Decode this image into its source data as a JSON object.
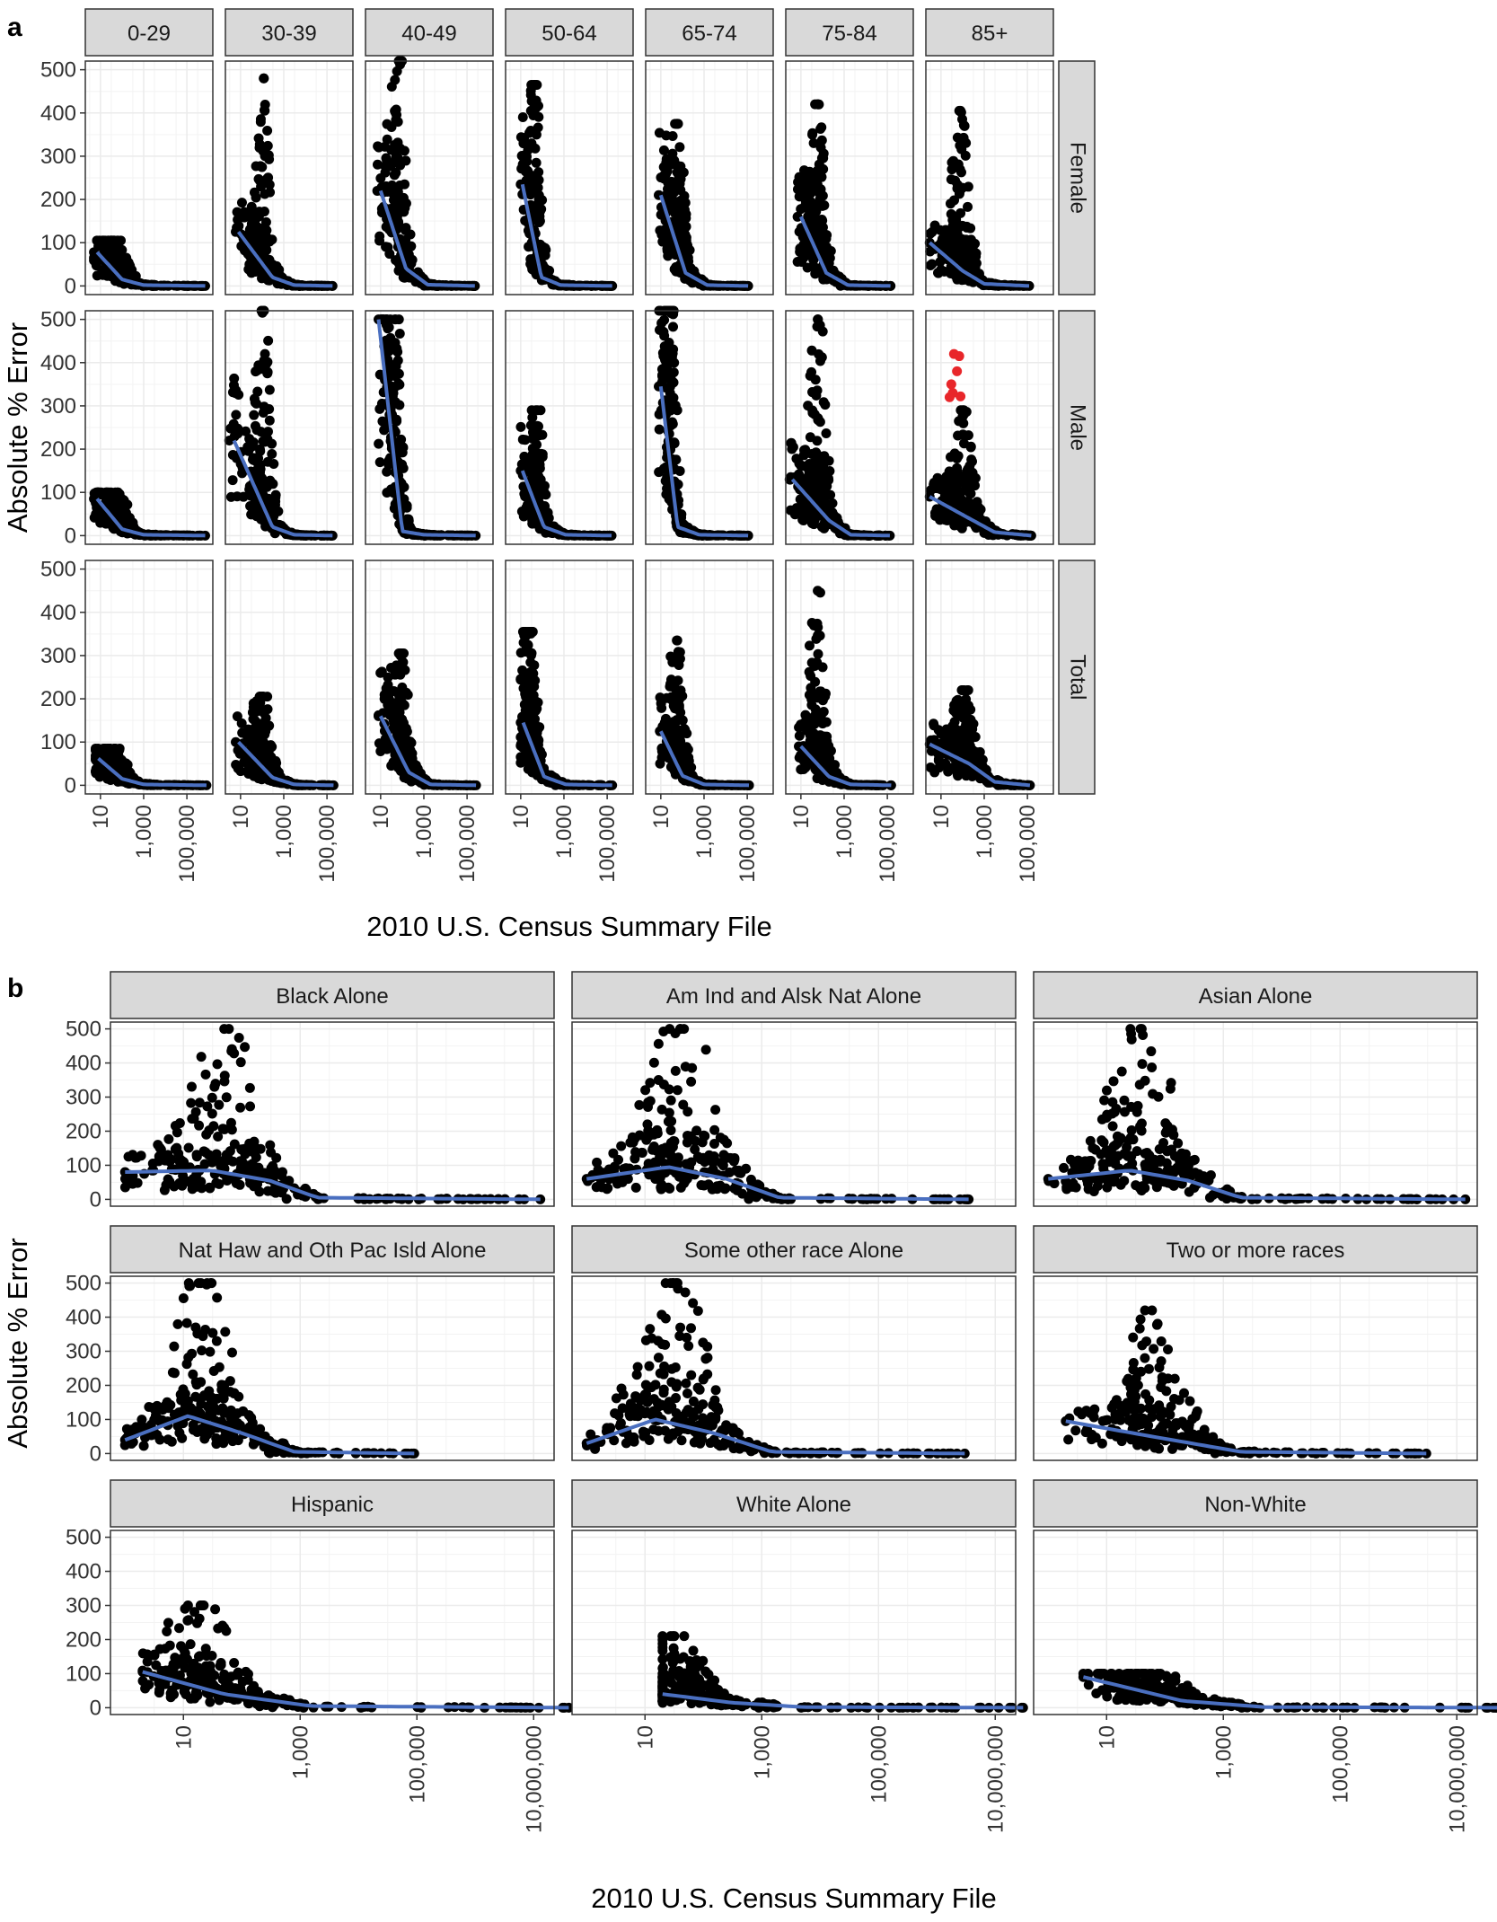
{
  "figure": {
    "panel_a_letter": "a",
    "panel_b_letter": "b"
  },
  "colors": {
    "point": "#000000",
    "highlight_point": "#e8262a",
    "smooth_line": "#4a6fc0",
    "strip_fill": "#d9d9d9",
    "grid": "#ebebeb",
    "panel_border": "#333333"
  },
  "chart_data": [
    {
      "id": "a",
      "type": "scatter",
      "title": "",
      "xlabel": "2010 U.S. Census Summary File",
      "ylabel": "Absolute % Error",
      "x_scale": "log10",
      "x_tick_values": [
        10,
        1000,
        100000
      ],
      "x_tick_labels": [
        "10",
        "1,000",
        "100,000"
      ],
      "ylim": [
        0,
        500
      ],
      "y_tick_values": [
        0,
        100,
        200,
        300,
        400,
        500
      ],
      "y_tick_labels": [
        "0",
        "100",
        "200",
        "300",
        "400",
        "500"
      ],
      "grid": true,
      "legend": "none",
      "columns": [
        "0-29",
        "30-39",
        "40-49",
        "50-64",
        "65-74",
        "75-84",
        "85+"
      ],
      "rows": [
        "Female",
        "Male",
        "Total"
      ],
      "panels": [
        {
          "column": "0-29",
          "row": "Female",
          "x_range": [
            5,
            700000
          ],
          "peak_x": 60,
          "peak_y": 105,
          "spread": 1.0,
          "smooth": [
            [
              7,
              78
            ],
            [
              100,
              15
            ],
            [
              1000,
              2
            ],
            [
              700000,
              0
            ]
          ]
        },
        {
          "column": "30-39",
          "row": "Female",
          "x_range": [
            6,
            180000
          ],
          "peak_x": 120,
          "peak_y": 480,
          "spread": 0.6,
          "smooth": [
            [
              8,
              125
            ],
            [
              300,
              20
            ],
            [
              3000,
              2
            ],
            [
              180000,
              0
            ]
          ]
        },
        {
          "column": "40-49",
          "row": "Female",
          "x_range": [
            7,
            230000
          ],
          "peak_x": 70,
          "peak_y": 520,
          "spread": 0.6,
          "smooth": [
            [
              10,
              220
            ],
            [
              150,
              40
            ],
            [
              1500,
              3
            ],
            [
              230000,
              0
            ]
          ]
        },
        {
          "column": "50-64",
          "row": "Female",
          "x_range": [
            10,
            170000
          ],
          "peak_x": 45,
          "peak_y": 465,
          "spread": 0.5,
          "smooth": [
            [
              12,
              235
            ],
            [
              90,
              20
            ],
            [
              700,
              2
            ],
            [
              170000,
              0
            ]
          ]
        },
        {
          "column": "65-74",
          "row": "Female",
          "x_range": [
            8,
            110000
          ],
          "peak_x": 60,
          "peak_y": 375,
          "spread": 0.6,
          "smooth": [
            [
              10,
              210
            ],
            [
              140,
              30
            ],
            [
              1400,
              2
            ],
            [
              110000,
              0
            ]
          ]
        },
        {
          "column": "75-84",
          "row": "Female",
          "x_range": [
            7,
            140000
          ],
          "peak_x": 60,
          "peak_y": 420,
          "spread": 0.6,
          "smooth": [
            [
              10,
              160
            ],
            [
              150,
              30
            ],
            [
              1500,
              2
            ],
            [
              140000,
              0
            ]
          ]
        },
        {
          "column": "85+",
          "row": "Female",
          "x_range": [
            3,
            120000
          ],
          "peak_x": 80,
          "peak_y": 405,
          "spread": 0.8,
          "smooth": [
            [
              3,
              100
            ],
            [
              100,
              35
            ],
            [
              1000,
              5
            ],
            [
              120000,
              0
            ]
          ]
        },
        {
          "column": "0-29",
          "row": "Male",
          "x_range": [
            5,
            700000
          ],
          "peak_x": 60,
          "peak_y": 100,
          "spread": 1.0,
          "smooth": [
            [
              7,
              85
            ],
            [
              100,
              15
            ],
            [
              1000,
              2
            ],
            [
              700000,
              0
            ]
          ]
        },
        {
          "column": "30-39",
          "row": "Male",
          "x_range": [
            3,
            180000
          ],
          "peak_x": 120,
          "peak_y": 520,
          "spread": 0.6,
          "smooth": [
            [
              5,
              220
            ],
            [
              300,
              20
            ],
            [
              3000,
              2
            ],
            [
              180000,
              0
            ]
          ]
        },
        {
          "column": "40-49",
          "row": "Male",
          "x_range": [
            8,
            250000
          ],
          "peak_x": 50,
          "peak_y": 500,
          "spread": 0.5,
          "smooth": [
            [
              8,
              500
            ],
            [
              100,
              10
            ],
            [
              1000,
              2
            ],
            [
              250000,
              0
            ]
          ]
        },
        {
          "column": "50-64",
          "row": "Male",
          "x_range": [
            10,
            160000
          ],
          "peak_x": 60,
          "peak_y": 290,
          "spread": 0.5,
          "smooth": [
            [
              12,
              150
            ],
            [
              120,
              20
            ],
            [
              1200,
              2
            ],
            [
              160000,
              0
            ]
          ]
        },
        {
          "column": "65-74",
          "row": "Male",
          "x_range": [
            8,
            110000
          ],
          "peak_x": 30,
          "peak_y": 520,
          "spread": 0.5,
          "smooth": [
            [
              10,
              345
            ],
            [
              60,
              20
            ],
            [
              600,
              2
            ],
            [
              110000,
              0
            ]
          ]
        },
        {
          "column": "75-84",
          "row": "Male",
          "x_range": [
            3,
            130000
          ],
          "peak_x": 60,
          "peak_y": 500,
          "spread": 0.7,
          "smooth": [
            [
              4,
              130
            ],
            [
              200,
              35
            ],
            [
              2000,
              2
            ],
            [
              130000,
              0
            ]
          ]
        },
        {
          "column": "85+",
          "row": "Male",
          "x_range": [
            3,
            150000
          ],
          "peak_x": 100,
          "peak_y": 290,
          "spread": 0.9,
          "smooth": [
            [
              3,
              90
            ],
            [
              200,
              40
            ],
            [
              3000,
              8
            ],
            [
              150000,
              0
            ]
          ],
          "highlight_points": [
            [
              25,
              320
            ],
            [
              30,
              350
            ],
            [
              40,
              420
            ],
            [
              55,
              380
            ],
            [
              70,
              415
            ],
            [
              80,
              322
            ],
            [
              35,
              330
            ]
          ]
        },
        {
          "column": "0-29",
          "row": "Total",
          "x_range": [
            6,
            800000
          ],
          "peak_x": 50,
          "peak_y": 85,
          "spread": 1.0,
          "smooth": [
            [
              8,
              62
            ],
            [
              100,
              15
            ],
            [
              1000,
              2
            ],
            [
              800000,
              0
            ]
          ]
        },
        {
          "column": "30-39",
          "row": "Total",
          "x_range": [
            6,
            200000
          ],
          "peak_x": 100,
          "peak_y": 205,
          "spread": 0.8,
          "smooth": [
            [
              8,
              100
            ],
            [
              300,
              18
            ],
            [
              3000,
              2
            ],
            [
              200000,
              0
            ]
          ]
        },
        {
          "column": "40-49",
          "row": "Total",
          "x_range": [
            8,
            260000
          ],
          "peak_x": 80,
          "peak_y": 305,
          "spread": 0.7,
          "smooth": [
            [
              10,
              160
            ],
            [
              200,
              30
            ],
            [
              2000,
              2
            ],
            [
              260000,
              0
            ]
          ]
        },
        {
          "column": "50-64",
          "row": "Total",
          "x_range": [
            10,
            170000
          ],
          "peak_x": 25,
          "peak_y": 355,
          "spread": 0.5,
          "smooth": [
            [
              13,
              145
            ],
            [
              120,
              20
            ],
            [
              1200,
              2
            ],
            [
              170000,
              0
            ]
          ]
        },
        {
          "column": "65-74",
          "row": "Total",
          "x_range": [
            9,
            120000
          ],
          "peak_x": 55,
          "peak_y": 335,
          "spread": 0.6,
          "smooth": [
            [
              10,
              125
            ],
            [
              100,
              22
            ],
            [
              1000,
              2
            ],
            [
              120000,
              0
            ]
          ]
        },
        {
          "column": "75-84",
          "row": "Total",
          "x_range": [
            8,
            150000
          ],
          "peak_x": 60,
          "peak_y": 450,
          "spread": 0.7,
          "smooth": [
            [
              10,
              90
            ],
            [
              200,
              20
            ],
            [
              2000,
              2
            ],
            [
              150000,
              0
            ]
          ]
        },
        {
          "column": "85+",
          "row": "Total",
          "x_range": [
            3,
            130000
          ],
          "peak_x": 120,
          "peak_y": 220,
          "spread": 0.9,
          "smooth": [
            [
              3,
              95
            ],
            [
              200,
              50
            ],
            [
              3000,
              8
            ],
            [
              130000,
              0
            ]
          ]
        }
      ]
    },
    {
      "id": "b",
      "type": "scatter",
      "title": "",
      "xlabel": "2010 U.S. Census Summary File",
      "ylabel": "Absolute % Error",
      "x_scale": "log10",
      "x_tick_values": [
        10,
        1000,
        100000,
        10000000
      ],
      "x_tick_labels": [
        "10",
        "1,000",
        "100,000",
        "10,000,000"
      ],
      "ylim": [
        0,
        500
      ],
      "y_tick_values": [
        0,
        100,
        200,
        300,
        400,
        500
      ],
      "y_tick_labels": [
        "0",
        "100",
        "200",
        "300",
        "400",
        "500"
      ],
      "grid": true,
      "legend": "none",
      "layout": [
        3,
        3
      ],
      "panels": [
        {
          "label": "Black Alone",
          "x_range": [
            1,
            13000000
          ],
          "peak_x": 50,
          "peak_y": 500,
          "spread": 1.1,
          "smooth": [
            [
              1,
              80
            ],
            [
              30,
              85
            ],
            [
              300,
              55
            ],
            [
              2000,
              5
            ],
            [
              13000000,
              0
            ]
          ]
        },
        {
          "label": "Am Ind and Alsk Nat Alone",
          "x_range": [
            1,
            3500000
          ],
          "peak_x": 40,
          "peak_y": 500,
          "spread": 1.1,
          "smooth": [
            [
              1,
              60
            ],
            [
              25,
              95
            ],
            [
              250,
              60
            ],
            [
              2000,
              5
            ],
            [
              3500000,
              0
            ]
          ]
        },
        {
          "label": "Asian Alone",
          "x_range": [
            1,
            14000000
          ],
          "peak_x": 40,
          "peak_y": 500,
          "spread": 1.1,
          "smooth": [
            [
              1,
              60
            ],
            [
              25,
              85
            ],
            [
              250,
              55
            ],
            [
              2000,
              5
            ],
            [
              14000000,
              0
            ]
          ]
        },
        {
          "label": "Nat Haw and Oth Pac Isld Alone",
          "x_range": [
            1,
            90000
          ],
          "peak_x": 20,
          "peak_y": 500,
          "spread": 1.0,
          "smooth": [
            [
              1,
              40
            ],
            [
              12,
              110
            ],
            [
              100,
              60
            ],
            [
              800,
              5
            ],
            [
              90000,
              0
            ]
          ]
        },
        {
          "label": "Some other race Alone",
          "x_range": [
            1,
            3000000
          ],
          "peak_x": 30,
          "peak_y": 500,
          "spread": 1.1,
          "smooth": [
            [
              1,
              30
            ],
            [
              15,
              100
            ],
            [
              150,
              60
            ],
            [
              1500,
              5
            ],
            [
              3000000,
              0
            ]
          ]
        },
        {
          "label": "Two or more races",
          "x_range": [
            2,
            3000000
          ],
          "peak_x": 60,
          "peak_y": 420,
          "spread": 1.0,
          "smooth": [
            [
              2,
              95
            ],
            [
              60,
              50
            ],
            [
              2000,
              5
            ],
            [
              3000000,
              0
            ]
          ]
        },
        {
          "label": "Hispanic",
          "x_range": [
            2,
            40000000
          ],
          "peak_x": 20,
          "peak_y": 300,
          "spread": 1.1,
          "smooth": [
            [
              2,
              105
            ],
            [
              50,
              40
            ],
            [
              1500,
              5
            ],
            [
              40000000,
              0
            ]
          ]
        },
        {
          "label": "White Alone",
          "x_range": [
            20,
            30000000
          ],
          "peak_x": 30,
          "peak_y": 210,
          "spread": 1.0,
          "smooth": [
            [
              20,
              40
            ],
            [
              300,
              15
            ],
            [
              5000,
              2
            ],
            [
              30000000,
              0
            ]
          ]
        },
        {
          "label": "Non-White",
          "x_range": [
            4,
            60000000
          ],
          "peak_x": 60,
          "peak_y": 100,
          "spread": 1.0,
          "smooth": [
            [
              4,
              90
            ],
            [
              200,
              20
            ],
            [
              5000,
              2
            ],
            [
              60000000,
              0
            ]
          ]
        }
      ]
    }
  ]
}
